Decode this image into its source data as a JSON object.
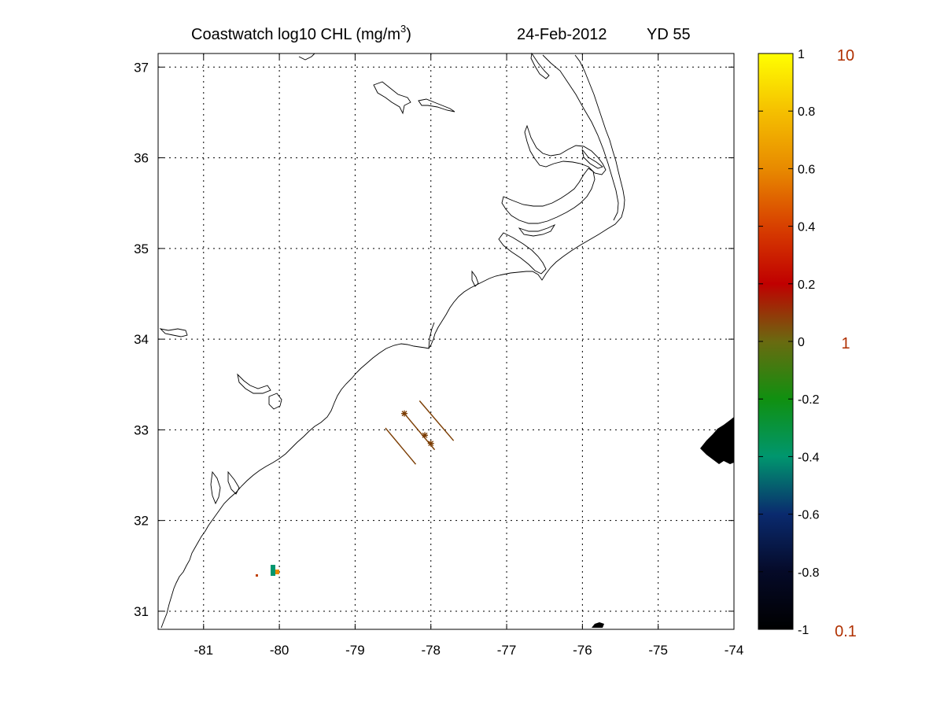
{
  "title": {
    "product": "Coastwatch  log10  CHL (mg/m",
    "unit_superscript": "3",
    "close_paren": ")",
    "date": "24-Feb-2012",
    "yearday": "YD 55"
  },
  "map": {
    "lon_range": [
      -81.6,
      -74.0
    ],
    "lat_range": [
      30.8,
      37.15
    ],
    "lon_ticks": [
      -81,
      -80,
      -79,
      -78,
      -77,
      -76,
      -75,
      -74
    ],
    "lat_ticks": [
      31,
      32,
      33,
      34,
      35,
      36,
      37
    ],
    "lon_tick_labels": [
      "-81",
      "-80",
      "-79",
      "-78",
      "-77",
      "-76",
      "-75",
      "-74"
    ],
    "lat_tick_labels": [
      "31",
      "32",
      "33",
      "34",
      "35",
      "36",
      "37"
    ],
    "grid": "dotted",
    "transect_color": "#7a3b00",
    "transect_lines": [
      [
        [
          -78.35,
          33.18
        ],
        [
          -77.95,
          32.78
        ]
      ],
      [
        [
          -78.15,
          33.32
        ],
        [
          -77.7,
          32.88
        ]
      ],
      [
        [
          -78.6,
          33.02
        ],
        [
          -78.2,
          32.62
        ]
      ]
    ],
    "station_markers": [
      [
        -78.35,
        33.18
      ],
      [
        -78.08,
        32.94
      ],
      [
        -78.0,
        32.85
      ]
    ],
    "coastline_color": "#000000"
  },
  "colorbar": {
    "range": [
      -1,
      1
    ],
    "stops": [
      {
        "v": -1.0,
        "c": "#000000"
      },
      {
        "v": -0.8,
        "c": "#050a28"
      },
      {
        "v": -0.6,
        "c": "#0a2a6e"
      },
      {
        "v": -0.4,
        "c": "#00966e"
      },
      {
        "v": -0.2,
        "c": "#109010"
      },
      {
        "v": 0.0,
        "c": "#6a6a10"
      },
      {
        "v": 0.2,
        "c": "#c00000"
      },
      {
        "v": 0.4,
        "c": "#d84000"
      },
      {
        "v": 0.6,
        "c": "#e88a00"
      },
      {
        "v": 0.8,
        "c": "#f5c000"
      },
      {
        "v": 1.0,
        "c": "#ffff00"
      }
    ],
    "ticks": [
      -1,
      -0.8,
      -0.6,
      -0.4,
      -0.2,
      0,
      0.2,
      0.4,
      0.6,
      0.8,
      1
    ],
    "tick_labels": [
      "-1",
      "-0.8",
      "-0.6",
      "-0.4",
      "-0.2",
      "0",
      "0.2",
      "0.4",
      "0.6",
      "0.8",
      "1"
    ],
    "linear_labels": [
      {
        "v": 1,
        "text": "10"
      },
      {
        "v": 0,
        "text": "1"
      },
      {
        "v": -1,
        "text": "0.1"
      }
    ],
    "linear_label_color": "#b03000"
  }
}
